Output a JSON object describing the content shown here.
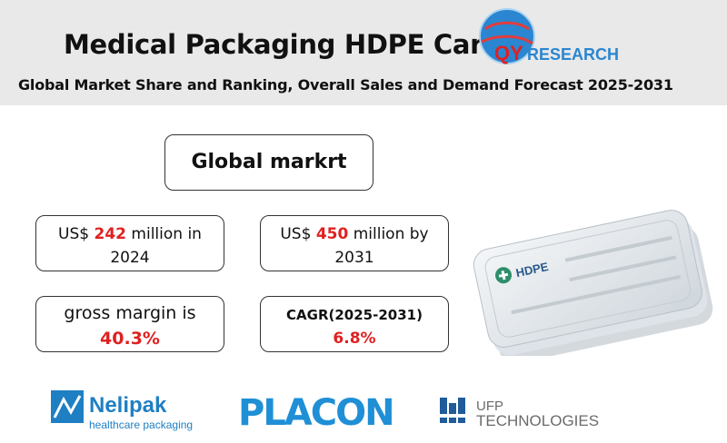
{
  "header": {
    "title": "Medical Packaging HDPE Cards",
    "subtitle": "Global Market Share and Ranking, Overall Sales and Demand Forecast 2025-2031",
    "logo_text": "QYRESEARCH"
  },
  "main": {
    "box_title": "Global markrt",
    "stat_2024": {
      "prefix": "US$ ",
      "value": "242",
      "suffix": " million in",
      "year": "2024"
    },
    "stat_2031": {
      "prefix": "US$ ",
      "value": "450",
      "suffix": " million by",
      "year": "2031"
    },
    "gross_margin": {
      "label": "gross margin is",
      "value": "40.3%"
    },
    "cagr": {
      "label": "CAGR(2025-2031)",
      "value": "6.8%"
    }
  },
  "product_card": {
    "brand_text": "HDPE"
  },
  "companies": {
    "nelipak_name": "Nelipak",
    "nelipak_tagline": "healthcare packaging",
    "placon_name": "PLACON",
    "ufp_line1": "UFP",
    "ufp_line2": "TECHNOLOGIES"
  },
  "colors": {
    "header_bg": "#e9e9e9",
    "accent_red": "#e02020",
    "brand_blue": "#1f7fc3",
    "ufp_gray": "#6b6b6b"
  }
}
